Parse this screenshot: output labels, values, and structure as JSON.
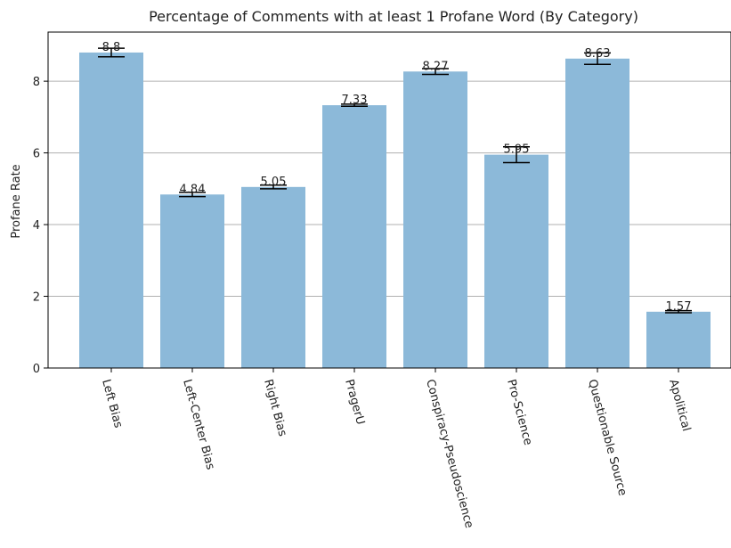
{
  "chart_data": {
    "type": "bar",
    "title": "Percentage of Comments with at least 1 Profane Word (By Category)",
    "xlabel": "",
    "ylabel": "Profane Rate",
    "categories": [
      "Left Bias",
      "Left-Center Bias",
      "Right Bias",
      "PragerU",
      "Conspiracy-Pseudoscience",
      "Pro-Science",
      "Questionable Source",
      "Apolitical"
    ],
    "values": [
      8.8,
      4.84,
      5.05,
      7.33,
      8.27,
      5.95,
      8.63,
      1.57
    ],
    "value_labels": [
      "8.8",
      "4.84",
      "5.05",
      "7.33",
      "8.27",
      "5.95",
      "8.63",
      "1.57"
    ],
    "errors": [
      0.12,
      0.06,
      0.05,
      0.03,
      0.08,
      0.22,
      0.16,
      0.03
    ],
    "ylim": [
      0,
      9.37
    ],
    "yticks": [
      0,
      2,
      4,
      6,
      8
    ],
    "ytick_labels": [
      "0",
      "2",
      "4",
      "6",
      "8"
    ],
    "grid": "horizontal",
    "bar_color": "#8cb9d9"
  }
}
